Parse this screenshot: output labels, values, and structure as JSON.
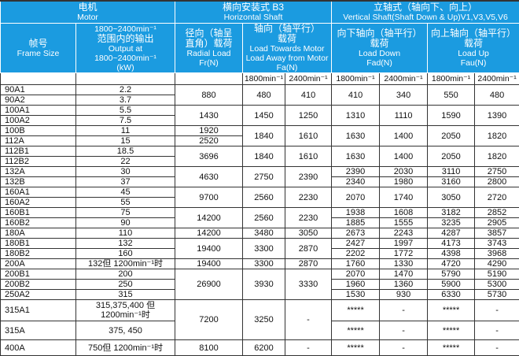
{
  "header": {
    "motor_cn": "电机",
    "motor_en": "Motor",
    "horizontal_cn": "横向安装式 B3",
    "horizontal_en": "Horizontal Shaft",
    "vertical_cn": "立轴式（轴向下、向上）",
    "vertical_en": "Vertical Shaft(Shaft Down & Up)V1,V3,V5,V6",
    "frame_cn": "帧号",
    "frame_en": "Frame Size",
    "output_l1": "1800~2400min⁻¹",
    "output_cn": "范围内的输出",
    "output_en1": "Output at",
    "output_en2": "1800~2400min⁻¹",
    "output_unit": "(kW)",
    "radial_cn1": "径向（轴呈",
    "radial_cn2": "直角）载荷",
    "radial_en": "Radial Load",
    "radial_unit": "Fr(N)",
    "axial_cn1": "轴向（轴平行）",
    "axial_cn2": "载荷",
    "axial_en1": "Load Towards Motor",
    "axial_en2": "Load Away from Motor",
    "axial_unit": "Fa(N)",
    "down_cn1": "向下轴向（轴平行）",
    "down_cn2": "载荷",
    "down_en": "Load Down",
    "down_unit": "Fad(N)",
    "up_cn1": "向上轴向（轴平行）",
    "up_cn2": "载荷",
    "up_en": "Load Up",
    "up_unit": "Fau(N)",
    "speeds": [
      "1800min⁻¹",
      "2400min⁻¹",
      "1800min⁻¹",
      "2400min⁻¹",
      "1800min⁻¹",
      "2400min⁻¹"
    ]
  },
  "colors": {
    "header_bg": "#1b9be0",
    "header_text": "#ffffff"
  },
  "rows": [
    [
      [
        "90A1"
      ],
      [
        "2.2"
      ],
      [
        "880",
        2
      ],
      [
        "480",
        2
      ],
      [
        "410",
        2
      ],
      [
        "410",
        2
      ],
      [
        "340",
        2
      ],
      [
        "550",
        2
      ],
      [
        "480",
        2
      ]
    ],
    [
      [
        "90A2"
      ],
      [
        "3.7"
      ]
    ],
    [
      [
        "100A1"
      ],
      [
        "5.5"
      ],
      [
        "1430",
        2
      ],
      [
        "1450",
        2
      ],
      [
        "1250",
        2
      ],
      [
        "1310",
        2
      ],
      [
        "1110",
        2
      ],
      [
        "1590",
        2
      ],
      [
        "1390",
        2
      ]
    ],
    [
      [
        "100A2"
      ],
      [
        "7.5"
      ]
    ],
    [
      [
        "100B"
      ],
      [
        "11"
      ],
      [
        "1920"
      ],
      [
        "1840",
        2
      ],
      [
        "1610",
        2
      ],
      [
        "1630",
        2
      ],
      [
        "1400",
        2
      ],
      [
        "2050",
        2
      ],
      [
        "1820",
        2
      ]
    ],
    [
      [
        "112A"
      ],
      [
        "15"
      ],
      [
        "2520"
      ]
    ],
    [
      [
        "112B1"
      ],
      [
        "18.5"
      ],
      [
        "3696",
        2
      ],
      [
        "1840",
        2
      ],
      [
        "1610",
        2
      ],
      [
        "1630",
        2
      ],
      [
        "1400",
        2
      ],
      [
        "2050",
        2
      ],
      [
        "1820",
        2
      ]
    ],
    [
      [
        "112B2"
      ],
      [
        "22"
      ]
    ],
    [
      [
        "132A"
      ],
      [
        "30"
      ],
      [
        "4630",
        2
      ],
      [
        "2750",
        2
      ],
      [
        "2390",
        2
      ],
      [
        "2390"
      ],
      [
        "2030"
      ],
      [
        "3110"
      ],
      [
        "2750"
      ]
    ],
    [
      [
        "132B"
      ],
      [
        "37"
      ],
      [
        "2340"
      ],
      [
        "1980"
      ],
      [
        "3160"
      ],
      [
        "2800"
      ]
    ],
    [
      [
        "160A1"
      ],
      [
        "45"
      ],
      [
        "9700",
        2
      ],
      [
        "2560",
        2
      ],
      [
        "2230",
        2
      ],
      [
        "2070",
        2
      ],
      [
        "1740",
        2
      ],
      [
        "3050",
        2
      ],
      [
        "2720",
        2
      ]
    ],
    [
      [
        "160A2"
      ],
      [
        "55"
      ]
    ],
    [
      [
        "160B1"
      ],
      [
        "75"
      ],
      [
        "14200",
        2
      ],
      [
        "2560",
        2
      ],
      [
        "2230",
        2
      ],
      [
        "1938"
      ],
      [
        "1608"
      ],
      [
        "3182"
      ],
      [
        "2852"
      ]
    ],
    [
      [
        "160B2"
      ],
      [
        "90"
      ],
      [
        "1885"
      ],
      [
        "1555"
      ],
      [
        "3235"
      ],
      [
        "2905"
      ]
    ],
    [
      [
        "180A"
      ],
      [
        "110"
      ],
      [
        "14200"
      ],
      [
        "3480"
      ],
      [
        "3050"
      ],
      [
        "2673"
      ],
      [
        "2243"
      ],
      [
        "4287"
      ],
      [
        "3857"
      ]
    ],
    [
      [
        "180B1"
      ],
      [
        "132"
      ],
      [
        "19400",
        2
      ],
      [
        "3300",
        2
      ],
      [
        "2870",
        2
      ],
      [
        "2427"
      ],
      [
        "1997"
      ],
      [
        "4173"
      ],
      [
        "3743"
      ]
    ],
    [
      [
        "180B2"
      ],
      [
        "160"
      ],
      [
        "2202"
      ],
      [
        "1772"
      ],
      [
        "4398"
      ],
      [
        "3968"
      ]
    ],
    [
      [
        "200A"
      ],
      [
        "132但 1200min⁻¹时"
      ],
      [
        "19400"
      ],
      [
        "3300"
      ],
      [
        "2870"
      ],
      [
        "1760"
      ],
      [
        "1330"
      ],
      [
        "4720"
      ],
      [
        "4290"
      ]
    ],
    [
      [
        "200B1"
      ],
      [
        "200"
      ],
      [
        "26900",
        3
      ],
      [
        "3930",
        3
      ],
      [
        "3330",
        3
      ],
      [
        "2070"
      ],
      [
        "1470"
      ],
      [
        "5790"
      ],
      [
        "5190"
      ]
    ],
    [
      [
        "200B2"
      ],
      [
        "250"
      ],
      [
        "1960"
      ],
      [
        "1360"
      ],
      [
        "5900"
      ],
      [
        "5300"
      ]
    ],
    [
      [
        "250A2"
      ],
      [
        "315"
      ],
      [
        "1530"
      ],
      [
        "930"
      ],
      [
        "6330"
      ],
      [
        "5730"
      ]
    ],
    [
      [
        "315A1"
      ],
      [
        "315,375,400 但1200min⁻¹时"
      ],
      [
        "7200",
        2
      ],
      [
        "3250",
        2
      ],
      [
        "-",
        2
      ],
      [
        "*****"
      ],
      [
        "-"
      ],
      [
        "*****"
      ],
      [
        "-"
      ]
    ],
    [
      [
        "315A"
      ],
      [
        "375, 450"
      ],
      [
        "*****"
      ],
      [
        "-"
      ],
      [
        "*****"
      ],
      [
        "-"
      ]
    ],
    [
      [
        "400A"
      ],
      [
        "750但 1200min⁻¹时"
      ],
      [
        "8100"
      ],
      [
        "6200"
      ],
      [
        "-"
      ],
      [
        "*****"
      ],
      [
        "-"
      ],
      [
        "*****"
      ],
      [
        "-"
      ]
    ]
  ]
}
